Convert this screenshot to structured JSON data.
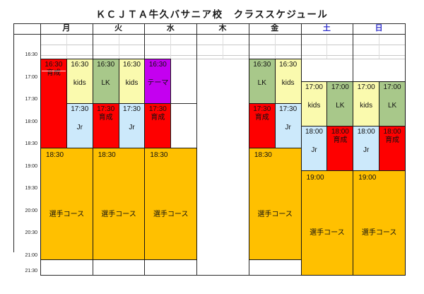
{
  "title": "ＫＣＪＴＡ牛久バサニア校　クラススケジュール",
  "colors": {
    "red": "#fe0000",
    "yellow": "#fafaae",
    "green": "#a8c88a",
    "blue": "#cce9fb",
    "purple": "#c400f0",
    "orange": "#ffc000",
    "weekday_text": "#1a1a1a",
    "weekend_text": "#3333cc"
  },
  "time_axis": [
    "16:30",
    "17:00",
    "17:30",
    "18:00",
    "18:30",
    "19:00",
    "19:30",
    "20:00",
    "20:30",
    "21:00",
    "21:30"
  ],
  "schedule": {
    "days": [
      {
        "label": "月",
        "weekend": false,
        "blocks": [
          {
            "slug": "ikusei",
            "time": "16:30",
            "name": "育成",
            "start": "16:30",
            "end": "18:30",
            "half": "left",
            "color": "red",
            "layout": "top",
            "top_divider": true
          },
          {
            "slug": "kids",
            "time": "16:30",
            "name": "kids",
            "start": "16:30",
            "end": "17:30",
            "half": "right",
            "color": "yellow",
            "layout": "center"
          },
          {
            "slug": "jr",
            "time": "17:30",
            "name": "Jr",
            "start": "17:30",
            "end": "18:30",
            "half": "right",
            "color": "blue",
            "layout": "center"
          },
          {
            "slug": "players-course",
            "time": "18:30",
            "name": "選手コース",
            "start": "18:30",
            "end": "21:00",
            "half": "full",
            "color": "orange",
            "layout": "banner"
          }
        ]
      },
      {
        "label": "火",
        "weekend": false,
        "blocks": [
          {
            "slug": "lk",
            "time": "16:30",
            "name": "LK",
            "start": "16:30",
            "end": "17:30",
            "half": "left",
            "color": "green",
            "layout": "center"
          },
          {
            "slug": "kids",
            "time": "16:30",
            "name": "kids",
            "start": "16:30",
            "end": "17:30",
            "half": "right",
            "color": "yellow",
            "layout": "center"
          },
          {
            "slug": "ikusei",
            "time": "17:30",
            "name": "育成",
            "start": "17:30",
            "end": "18:30",
            "half": "left",
            "color": "red",
            "layout": "top"
          },
          {
            "slug": "jr",
            "time": "17:30",
            "name": "Jr",
            "start": "17:30",
            "end": "18:30",
            "half": "right",
            "color": "blue",
            "layout": "center"
          },
          {
            "slug": "players-course",
            "time": "18:30",
            "name": "選手コース",
            "start": "18:30",
            "end": "21:00",
            "half": "full",
            "color": "orange",
            "layout": "banner"
          }
        ]
      },
      {
        "label": "水",
        "weekend": false,
        "blocks": [
          {
            "slug": "theme",
            "time": "16:30",
            "name": "テーマ",
            "start": "16:30",
            "end": "17:30",
            "half": "left",
            "color": "purple",
            "layout": "center"
          },
          {
            "slug": "ikusei",
            "time": "17:30",
            "name": "育成",
            "start": "17:30",
            "end": "18:30",
            "half": "left",
            "color": "red",
            "layout": "top"
          },
          {
            "slug": "players-course",
            "time": "18:30",
            "name": "選手コース",
            "start": "18:30",
            "end": "21:00",
            "half": "full",
            "color": "orange",
            "layout": "banner"
          }
        ]
      },
      {
        "label": "木",
        "weekend": false,
        "blocks": []
      },
      {
        "label": "金",
        "weekend": false,
        "blocks": [
          {
            "slug": "lk",
            "time": "16:30",
            "name": "LK",
            "start": "16:30",
            "end": "17:30",
            "half": "left",
            "color": "green",
            "layout": "center"
          },
          {
            "slug": "kids",
            "time": "16:30",
            "name": "kids",
            "start": "16:30",
            "end": "17:30",
            "half": "right",
            "color": "yellow",
            "layout": "center"
          },
          {
            "slug": "ikusei",
            "time": "17:30",
            "name": "育成",
            "start": "17:30",
            "end": "18:30",
            "half": "left",
            "color": "red",
            "layout": "top"
          },
          {
            "slug": "jr",
            "time": "17:30",
            "name": "Jr",
            "start": "17:30",
            "end": "18:30",
            "half": "right",
            "color": "blue",
            "layout": "center"
          },
          {
            "slug": "players-course",
            "time": "18:30",
            "name": "選手コース",
            "start": "18:30",
            "end": "21:00",
            "half": "full",
            "color": "orange",
            "layout": "banner"
          }
        ]
      },
      {
        "label": "土",
        "weekend": true,
        "blocks": [
          {
            "slug": "kids",
            "time": "17:00",
            "name": "kids",
            "start": "17:00",
            "end": "18:00",
            "half": "left",
            "color": "yellow",
            "layout": "center"
          },
          {
            "slug": "lk",
            "time": "17:00",
            "name": "LK",
            "start": "17:00",
            "end": "18:00",
            "half": "right",
            "color": "green",
            "layout": "center"
          },
          {
            "slug": "jr",
            "time": "18:00",
            "name": "Jr",
            "start": "18:00",
            "end": "19:00",
            "half": "left",
            "color": "blue",
            "layout": "center"
          },
          {
            "slug": "ikusei",
            "time": "18:00",
            "name": "育成",
            "start": "18:00",
            "end": "19:00",
            "half": "right",
            "color": "red",
            "layout": "top"
          },
          {
            "slug": "players-course",
            "time": "19:00",
            "name": "選手コース",
            "start": "19:00",
            "end": "21:30",
            "half": "full",
            "color": "orange",
            "layout": "banner"
          }
        ]
      },
      {
        "label": "日",
        "weekend": true,
        "blocks": [
          {
            "slug": "kids",
            "time": "17:00",
            "name": "kids",
            "start": "17:00",
            "end": "18:00",
            "half": "left",
            "color": "yellow",
            "layout": "center"
          },
          {
            "slug": "lk",
            "time": "17:00",
            "name": "LK",
            "start": "17:00",
            "end": "18:00",
            "half": "right",
            "color": "green",
            "layout": "center"
          },
          {
            "slug": "jr",
            "time": "18:00",
            "name": "Jr",
            "start": "18:00",
            "end": "19:00",
            "half": "left",
            "color": "blue",
            "layout": "center"
          },
          {
            "slug": "ikusei",
            "time": "18:00",
            "name": "育成",
            "start": "18:00",
            "end": "19:00",
            "half": "right",
            "color": "red",
            "layout": "top"
          },
          {
            "slug": "players-course",
            "time": "19:00",
            "name": "選手コース",
            "start": "19:00",
            "end": "21:30",
            "half": "full",
            "color": "orange",
            "layout": "banner"
          }
        ]
      }
    ],
    "extra_lines": [
      {
        "day_index": 2,
        "half": "right",
        "time": "17:30"
      }
    ]
  }
}
